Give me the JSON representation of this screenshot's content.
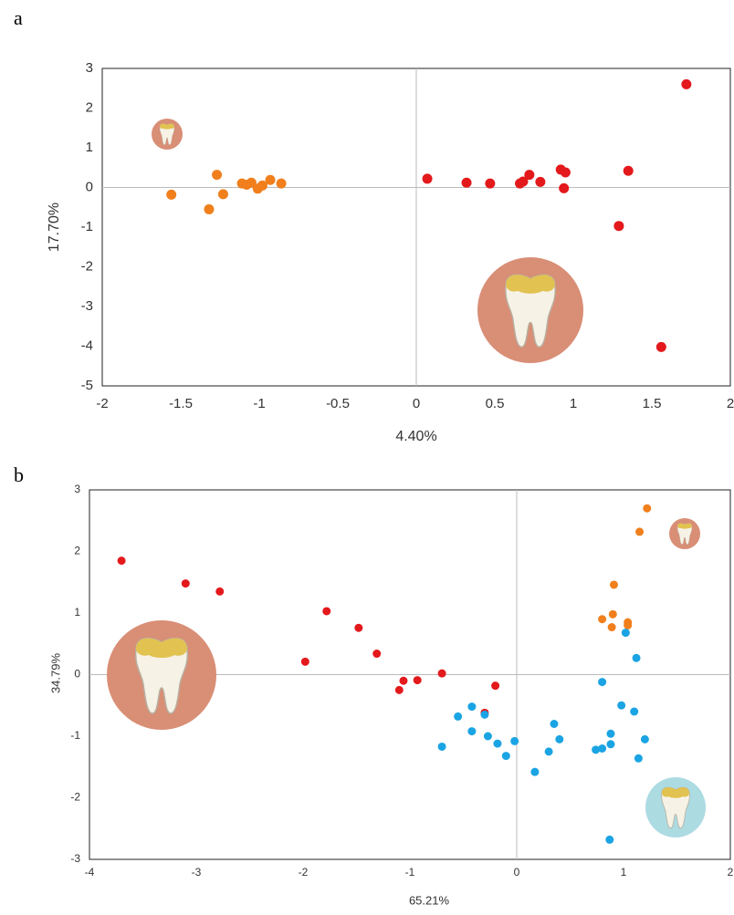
{
  "chart_data": [
    {
      "type": "scatter",
      "panel_label": "a",
      "x_label": "4.40%",
      "y_label": "17.70%",
      "xlim": [
        -2,
        2
      ],
      "ylim": [
        -5,
        3
      ],
      "xticks": [
        -2,
        -1.5,
        -1,
        -0.5,
        0,
        0.5,
        1,
        1.5,
        2
      ],
      "yticks": [
        -5,
        -4,
        -3,
        -2,
        -1,
        0,
        1,
        2,
        3
      ],
      "zero_lines": true,
      "series": [
        {
          "color": "#f07f1c",
          "x": [
            -1.56,
            -1.27,
            -1.32,
            -1.23,
            -1.11,
            -1.08,
            -1.05,
            -1.01,
            -0.98,
            -0.93,
            -0.86
          ],
          "values": [
            -0.18,
            0.32,
            -0.55,
            -0.17,
            0.1,
            0.07,
            0.12,
            -0.03,
            0.05,
            0.19,
            0.1
          ]
        },
        {
          "color": "#e3191c",
          "x": [
            0.07,
            0.32,
            0.47,
            0.66,
            0.68,
            0.72,
            0.79,
            0.92,
            0.95,
            0.94,
            1.35,
            1.29,
            1.56,
            1.72
          ],
          "values": [
            0.22,
            0.12,
            0.1,
            0.1,
            0.15,
            0.32,
            0.14,
            0.45,
            0.38,
            -0.02,
            0.42,
            -0.97,
            -4.02,
            2.6
          ]
        }
      ]
    },
    {
      "type": "scatter",
      "panel_label": "b",
      "x_label": "65.21%",
      "y_label": "34.79%",
      "xlim": [
        -4,
        2
      ],
      "ylim": [
        -3,
        3
      ],
      "xticks": [
        -4,
        -3,
        -2,
        -1,
        0,
        1,
        2
      ],
      "yticks": [
        -3,
        -2,
        -1,
        0,
        1,
        2,
        3
      ],
      "zero_lines": true,
      "series": [
        {
          "color": "#e3191c",
          "x": [
            -3.7,
            -3.1,
            -2.78,
            -1.98,
            -1.78,
            -1.48,
            -1.31,
            -1.1,
            -1.06,
            -0.93,
            -0.7,
            -0.3,
            -0.2
          ],
          "values": [
            1.85,
            1.48,
            1.35,
            0.21,
            1.03,
            0.76,
            0.34,
            -0.25,
            -0.1,
            -0.09,
            0.02,
            -0.62,
            -0.18
          ]
        },
        {
          "color": "#f07f1c",
          "x": [
            1.22,
            1.15,
            0.91,
            0.9,
            0.8,
            0.89,
            1.04,
            1.04
          ],
          "values": [
            2.7,
            2.32,
            1.46,
            0.98,
            0.9,
            0.77,
            0.8,
            0.85
          ]
        },
        {
          "color": "#1ba4e3",
          "x": [
            1.02,
            1.12,
            0.8,
            0.98,
            1.1,
            1.2,
            1.14,
            0.88,
            0.88,
            0.8,
            0.74,
            0.4,
            0.35,
            0.3,
            0.17,
            -0.02,
            -0.1,
            -0.18,
            -0.27,
            -0.3,
            -0.42,
            -0.42,
            -0.55,
            -0.7,
            0.87
          ],
          "values": [
            0.68,
            0.27,
            -0.12,
            -0.5,
            -0.6,
            -1.05,
            -1.36,
            -0.96,
            -1.13,
            -1.2,
            -1.22,
            -1.05,
            -0.8,
            -1.25,
            -1.58,
            -1.08,
            -1.32,
            -1.12,
            -1.0,
            -0.65,
            -0.92,
            -0.52,
            -0.68,
            -1.17,
            -2.68
          ]
        }
      ]
    }
  ]
}
